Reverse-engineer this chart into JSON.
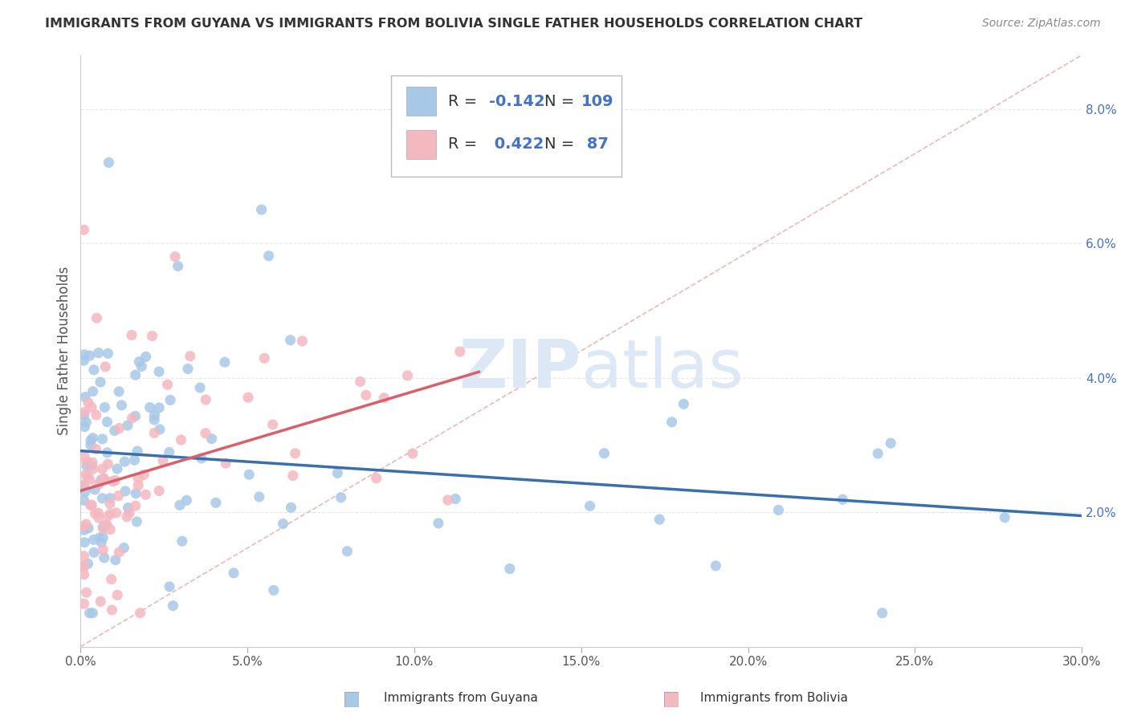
{
  "title": "IMMIGRANTS FROM GUYANA VS IMMIGRANTS FROM BOLIVIA SINGLE FATHER HOUSEHOLDS CORRELATION CHART",
  "source": "Source: ZipAtlas.com",
  "ylabel": "Single Father Households",
  "xlim": [
    0.0,
    0.3
  ],
  "ylim": [
    0.0,
    0.088
  ],
  "xticks": [
    0.0,
    0.05,
    0.1,
    0.15,
    0.2,
    0.25,
    0.3
  ],
  "xtick_labels": [
    "0.0%",
    "5.0%",
    "10.0%",
    "15.0%",
    "20.0%",
    "25.0%",
    "30.0%"
  ],
  "yticks_right": [
    0.02,
    0.04,
    0.06,
    0.08
  ],
  "ytick_labels_right": [
    "2.0%",
    "4.0%",
    "6.0%",
    "8.0%"
  ],
  "guyana_color": "#a8c8e8",
  "bolivia_color": "#f4b8c0",
  "guyana_R": -0.142,
  "guyana_N": 109,
  "bolivia_R": 0.422,
  "bolivia_N": 87,
  "trend_guyana_color": "#3a6fad",
  "trend_bolivia_color": "#d9606a",
  "diagonal_color": "#e8b0b8",
  "watermark_zip": "ZIP",
  "watermark_atlas": "atlas",
  "background_color": "#ffffff",
  "legend_fontsize": 14,
  "title_fontsize": 11.5,
  "ylabel_fontsize": 12,
  "tick_fontsize": 11,
  "footer_labels": [
    "Immigrants from Guyana",
    "Immigrants from Bolivia"
  ],
  "footer_color": "#333333",
  "legend_blue_color": "#4472c4",
  "grid_color": "#e0e0e0"
}
